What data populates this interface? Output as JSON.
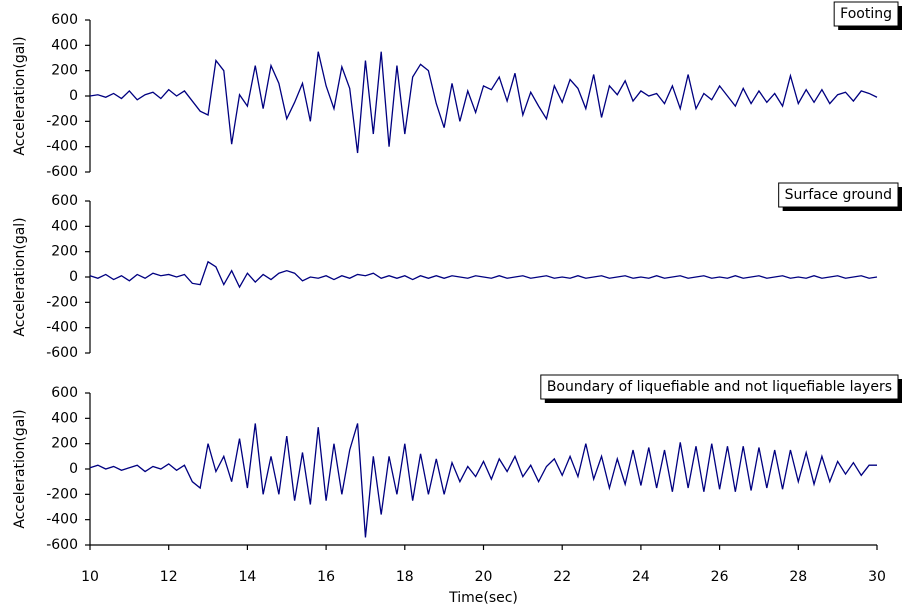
{
  "chart_data": [
    {
      "type": "line",
      "ylabel": "Acceleration(gal)",
      "x": [
        10,
        10.2,
        10.4,
        10.6,
        10.8,
        11,
        11.2,
        11.4,
        11.6,
        11.8,
        12,
        12.2,
        12.4,
        12.6,
        12.8,
        13,
        13.2,
        13.4,
        13.6,
        13.8,
        14,
        14.2,
        14.4,
        14.6,
        14.8,
        15,
        15.2,
        15.4,
        15.6,
        15.8,
        16,
        16.2,
        16.4,
        16.6,
        16.8,
        17,
        17.2,
        17.4,
        17.6,
        17.8,
        18,
        18.2,
        18.4,
        18.6,
        18.8,
        19,
        19.2,
        19.4,
        19.6,
        19.8,
        20,
        20.2,
        20.4,
        20.6,
        20.8,
        21,
        21.2,
        21.4,
        21.6,
        21.8,
        22,
        22.2,
        22.4,
        22.6,
        22.8,
        23,
        23.2,
        23.4,
        23.6,
        23.8,
        24,
        24.2,
        24.4,
        24.6,
        24.8,
        25,
        25.2,
        25.4,
        25.6,
        25.8,
        26,
        26.2,
        26.4,
        26.6,
        26.8,
        27,
        27.2,
        27.4,
        27.6,
        27.8,
        28,
        28.2,
        28.4,
        28.6,
        28.8,
        29,
        29.2,
        29.4,
        29.6,
        29.8,
        30
      ],
      "series": [
        {
          "name": "Footing",
          "color": "#000080",
          "values": [
            0,
            10,
            -10,
            20,
            -20,
            40,
            -30,
            10,
            30,
            -20,
            50,
            0,
            40,
            -40,
            -120,
            -150,
            280,
            200,
            -380,
            10,
            -80,
            240,
            -100,
            240,
            100,
            -180,
            -50,
            100,
            -200,
            350,
            80,
            -100,
            230,
            60,
            -450,
            280,
            -300,
            350,
            -400,
            240,
            -300,
            150,
            250,
            200,
            -60,
            -250,
            100,
            -200,
            40,
            -130,
            80,
            50,
            150,
            -40,
            180,
            -150,
            30,
            -80,
            -180,
            80,
            -50,
            130,
            60,
            -100,
            170,
            -170,
            80,
            10,
            120,
            -40,
            40,
            0,
            20,
            -60,
            80,
            -100,
            170,
            -100,
            20,
            -30,
            80,
            0,
            -80,
            60,
            -60,
            40,
            -50,
            20,
            -80,
            160,
            -60,
            50,
            -50,
            50,
            -60,
            10,
            30,
            -40,
            40,
            20,
            -10
          ]
        }
      ],
      "xlim": [
        10,
        30
      ],
      "ylim": [
        -600,
        600
      ],
      "yticks": [
        -600,
        -400,
        -200,
        0,
        200,
        400,
        600
      ]
    },
    {
      "type": "line",
      "ylabel": "Acceleration(gal)",
      "x": [
        10,
        10.2,
        10.4,
        10.6,
        10.8,
        11,
        11.2,
        11.4,
        11.6,
        11.8,
        12,
        12.2,
        12.4,
        12.6,
        12.8,
        13,
        13.2,
        13.4,
        13.6,
        13.8,
        14,
        14.2,
        14.4,
        14.6,
        14.8,
        15,
        15.2,
        15.4,
        15.6,
        15.8,
        16,
        16.2,
        16.4,
        16.6,
        16.8,
        17,
        17.2,
        17.4,
        17.6,
        17.8,
        18,
        18.2,
        18.4,
        18.6,
        18.8,
        19,
        19.2,
        19.4,
        19.6,
        19.8,
        20,
        20.2,
        20.4,
        20.6,
        20.8,
        21,
        21.2,
        21.4,
        21.6,
        21.8,
        22,
        22.2,
        22.4,
        22.6,
        22.8,
        23,
        23.2,
        23.4,
        23.6,
        23.8,
        24,
        24.2,
        24.4,
        24.6,
        24.8,
        25,
        25.2,
        25.4,
        25.6,
        25.8,
        26,
        26.2,
        26.4,
        26.6,
        26.8,
        27,
        27.2,
        27.4,
        27.6,
        27.8,
        28,
        28.2,
        28.4,
        28.6,
        28.8,
        29,
        29.2,
        29.4,
        29.6,
        29.8,
        30
      ],
      "series": [
        {
          "name": "Surface ground",
          "color": "#000080",
          "values": [
            10,
            -10,
            20,
            -20,
            10,
            -30,
            20,
            -10,
            30,
            10,
            20,
            0,
            20,
            -50,
            -60,
            120,
            80,
            -60,
            50,
            -80,
            30,
            -40,
            20,
            -20,
            30,
            50,
            30,
            -30,
            0,
            -10,
            10,
            -20,
            10,
            -10,
            20,
            10,
            30,
            -10,
            10,
            -10,
            10,
            -20,
            10,
            -10,
            10,
            -10,
            10,
            0,
            -10,
            10,
            0,
            -10,
            10,
            -10,
            0,
            10,
            -10,
            0,
            10,
            -10,
            0,
            -10,
            10,
            -10,
            0,
            10,
            -10,
            0,
            10,
            -10,
            0,
            -10,
            10,
            -10,
            0,
            10,
            -10,
            0,
            10,
            -10,
            0,
            -10,
            10,
            -10,
            0,
            10,
            -10,
            0,
            10,
            -10,
            0,
            -10,
            10,
            -10,
            0,
            10,
            -10,
            0,
            10,
            -10,
            0
          ]
        }
      ],
      "xlim": [
        10,
        30
      ],
      "ylim": [
        -600,
        600
      ],
      "yticks": [
        -600,
        -400,
        -200,
        0,
        200,
        400,
        600
      ]
    },
    {
      "type": "line",
      "ylabel": "Acceleration(gal)",
      "xlabel": "Time(sec)",
      "x": [
        10,
        10.2,
        10.4,
        10.6,
        10.8,
        11,
        11.2,
        11.4,
        11.6,
        11.8,
        12,
        12.2,
        12.4,
        12.6,
        12.8,
        13,
        13.2,
        13.4,
        13.6,
        13.8,
        14,
        14.2,
        14.4,
        14.6,
        14.8,
        15,
        15.2,
        15.4,
        15.6,
        15.8,
        16,
        16.2,
        16.4,
        16.6,
        16.8,
        17,
        17.2,
        17.4,
        17.6,
        17.8,
        18,
        18.2,
        18.4,
        18.6,
        18.8,
        19,
        19.2,
        19.4,
        19.6,
        19.8,
        20,
        20.2,
        20.4,
        20.6,
        20.8,
        21,
        21.2,
        21.4,
        21.6,
        21.8,
        22,
        22.2,
        22.4,
        22.6,
        22.8,
        23,
        23.2,
        23.4,
        23.6,
        23.8,
        24,
        24.2,
        24.4,
        24.6,
        24.8,
        25,
        25.2,
        25.4,
        25.6,
        25.8,
        26,
        26.2,
        26.4,
        26.6,
        26.8,
        27,
        27.2,
        27.4,
        27.6,
        27.8,
        28,
        28.2,
        28.4,
        28.6,
        28.8,
        29,
        29.2,
        29.4,
        29.6,
        29.8,
        30
      ],
      "series": [
        {
          "name": "Boundary of liquefiable and not liquefiable layers",
          "color": "#000080",
          "values": [
            10,
            30,
            0,
            20,
            -10,
            10,
            30,
            -20,
            20,
            0,
            40,
            -10,
            30,
            -100,
            -150,
            200,
            -20,
            100,
            -100,
            240,
            -150,
            360,
            -200,
            100,
            -200,
            260,
            -250,
            130,
            -280,
            330,
            -250,
            200,
            -200,
            150,
            360,
            -540,
            100,
            -360,
            100,
            -200,
            200,
            -250,
            120,
            -200,
            80,
            -200,
            50,
            -100,
            20,
            -60,
            60,
            -80,
            80,
            -20,
            100,
            -60,
            30,
            -100,
            20,
            80,
            -50,
            100,
            -60,
            200,
            -80,
            100,
            -150,
            80,
            -120,
            150,
            -130,
            170,
            -150,
            150,
            -180,
            210,
            -150,
            180,
            -180,
            200,
            -160,
            180,
            -180,
            180,
            -170,
            170,
            -150,
            150,
            -160,
            150,
            -100,
            130,
            -120,
            100,
            -100,
            60,
            -40,
            50,
            -50,
            30,
            30
          ]
        }
      ],
      "xlim": [
        10,
        30
      ],
      "ylim": [
        -600,
        600
      ],
      "yticks": [
        -600,
        -400,
        -200,
        0,
        200,
        400,
        600
      ],
      "xticks": [
        10,
        12,
        14,
        16,
        18,
        20,
        22,
        24,
        26,
        28,
        30
      ]
    }
  ]
}
